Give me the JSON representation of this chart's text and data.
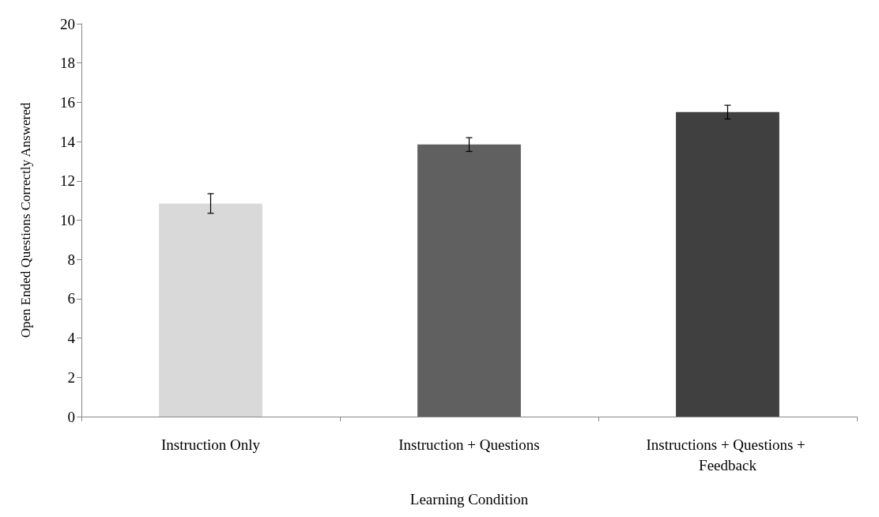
{
  "chart_data": {
    "type": "bar",
    "xlabel": "Learning Condition",
    "ylabel": "Open Ended Questions Correctly Answered",
    "categories": [
      "Instruction Only",
      "Instruction + Questions",
      "Instructions + Questions + Feedback"
    ],
    "values": [
      10.85,
      13.85,
      15.5
    ],
    "colors": [
      "#d9d9d9",
      "#606060",
      "#404040"
    ],
    "errors": [
      0.5,
      0.35,
      0.35
    ],
    "ylim": [
      0,
      20
    ],
    "yticks": [
      0,
      2,
      4,
      6,
      8,
      10,
      12,
      14,
      16,
      18,
      20
    ],
    "grid": false
  }
}
